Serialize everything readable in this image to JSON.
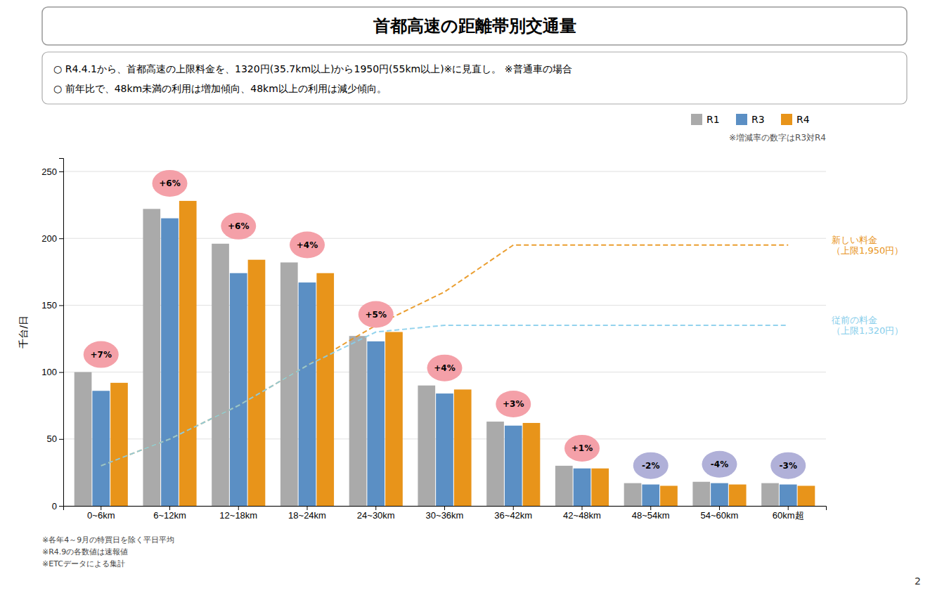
{
  "chart_data": {
    "type": "bar",
    "title": "首都高速の距離帯別交通量",
    "subtitle": [
      "○ R4.4.1から、首都高速の上限料金を、1320円(35.7km以上)から1950円(55km以上)※に見直し。 ※普通車の場合",
      "○ 前年比で、48km未満の利用は増加傾向、48km以上の利用は減少傾向。"
    ],
    "ylabel": "千台/日",
    "categories": [
      "0~6km",
      "6~12km",
      "12~18km",
      "18~24km",
      "24~30km",
      "30~36km",
      "36~42km",
      "42~48km",
      "48~54km",
      "54~60km",
      "60km超"
    ],
    "series": [
      {
        "name": "R1",
        "color": "#aaaaaa",
        "values": [
          100,
          222,
          196,
          182,
          127,
          90,
          63,
          30,
          17,
          18,
          17
        ]
      },
      {
        "name": "R3",
        "color": "#5b8fc4",
        "values": [
          86,
          215,
          174,
          167,
          123,
          84,
          60,
          28,
          16,
          17,
          16
        ]
      },
      {
        "name": "R4",
        "color": "#e8941a",
        "values": [
          92,
          228,
          184,
          174,
          130,
          87,
          62,
          28,
          15,
          16,
          15
        ]
      },
      {
        "name": "新しい料金\n（上限1,950円）",
        "type": "line",
        "line_style": "dashed",
        "color": "#e8941a",
        "values": [
          30,
          50,
          75,
          105,
          135,
          160,
          195,
          195,
          195,
          195,
          195
        ]
      },
      {
        "name": "従前の料金\n（上限1,320円）",
        "type": "line",
        "line_style": "dashed",
        "color": "#87CEEB",
        "values": [
          30,
          50,
          75,
          105,
          130,
          135,
          135,
          135,
          135,
          135,
          135
        ]
      }
    ],
    "change_labels": {
      "values": [
        7,
        6,
        6,
        4,
        5,
        4,
        3,
        1,
        -2,
        -4,
        -3
      ],
      "value_labels": [
        "+7%",
        "+6%",
        "+6%",
        "+4%",
        "+5%",
        "+4%",
        "+3%",
        "+1%",
        "-2%",
        "-4%",
        "-3%"
      ],
      "colors": [
        "#f4a0a8",
        "#f4a0a8",
        "#f4a0a8",
        "#f4a0a8",
        "#f4a0a8",
        "#f4a0a8",
        "#f4a0a8",
        "#f4a0a8",
        "#b0b0d8",
        "#b0b0d8",
        "#b0b0d8"
      ]
    },
    "legend_note": "※増減率の数字はR3対R4",
    "footnotes": [
      "※各年4～9月の特買日を除く平日平均",
      "※R4.9の各数値は速報値",
      "※ETCデータによる集計"
    ],
    "page_number": "2",
    "ylim": [
      0,
      260
    ],
    "yticks": [
      0,
      50,
      100,
      150,
      200,
      250
    ],
    "grid": true,
    "legend": "upper right"
  }
}
